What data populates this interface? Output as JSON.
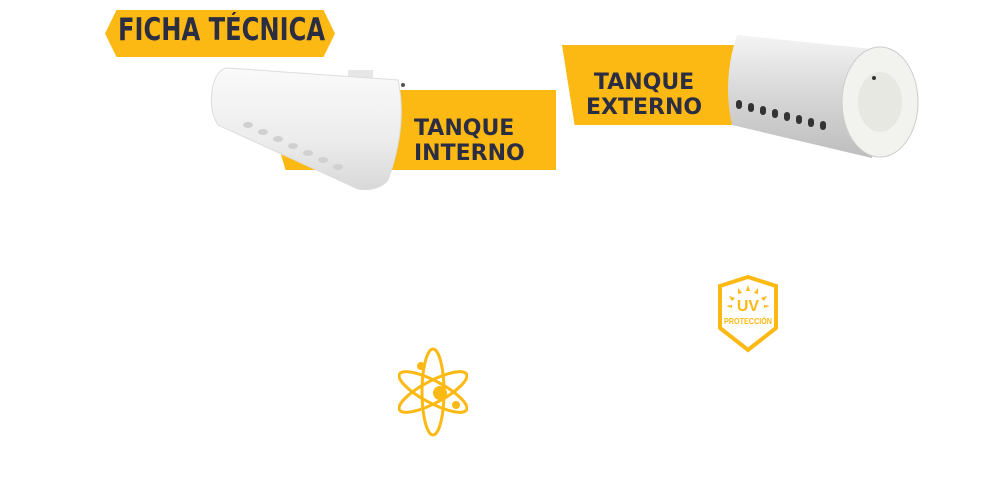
{
  "header": {
    "title": "FICHA TÉCNICA"
  },
  "products": [
    {
      "line1": "TANQUE",
      "line2": "INTERNO",
      "image": "internal-tank"
    },
    {
      "line1": "TANQUE",
      "line2": "EXTERNO",
      "image": "external-tank"
    }
  ],
  "badges": {
    "uv": {
      "main": "UV",
      "sub": "PROTECCIÓN",
      "icon": "uv-shield-icon"
    },
    "atom": {
      "icon": "atom-icon"
    }
  },
  "colors": {
    "accent": "#FDB913",
    "text": "#2b2d42"
  }
}
